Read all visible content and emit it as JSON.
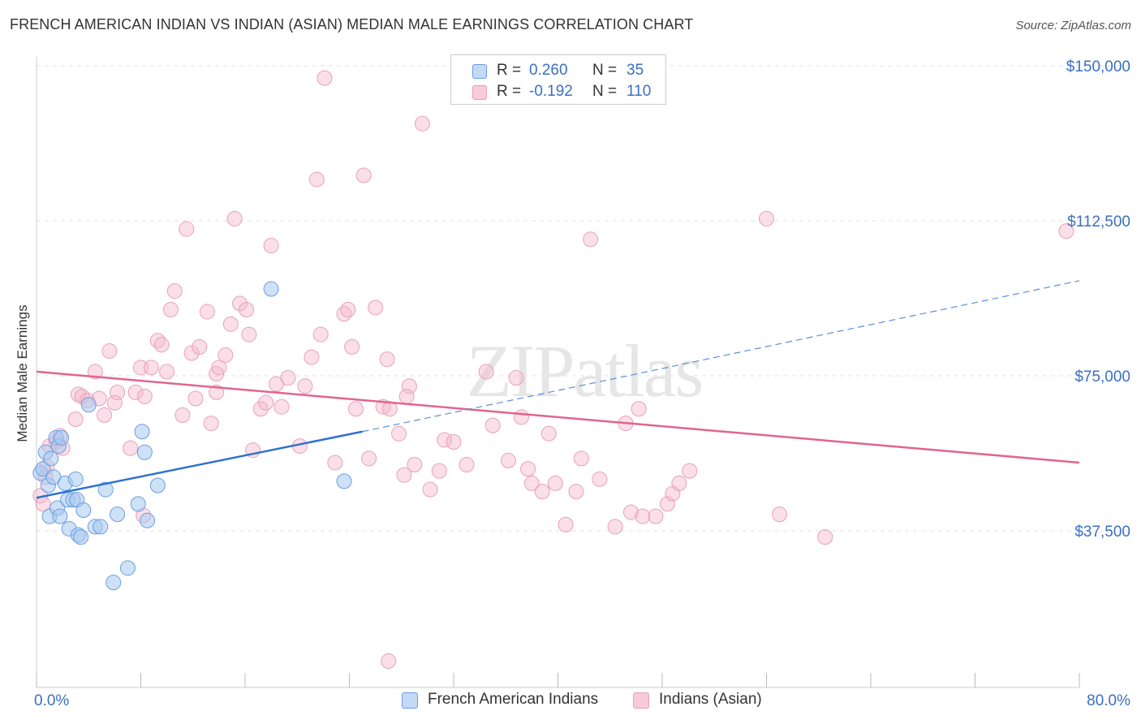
{
  "title": "FRENCH AMERICAN INDIAN VS INDIAN (ASIAN) MEDIAN MALE EARNINGS CORRELATION CHART",
  "source": "Source: ZipAtlas.com",
  "watermark": "ZIPatlas",
  "legend": {
    "rows": [
      {
        "r_label": "R =",
        "r_value": "0.260",
        "n_label": "N =",
        "n_value": "35",
        "color": "#a8c8f0"
      },
      {
        "r_label": "R =",
        "r_value": "-0.192",
        "n_label": "N =",
        "n_value": "110",
        "color": "#f5b8cc"
      }
    ]
  },
  "bottom_legend": [
    {
      "label": "French American Indians",
      "color": "#a8c8f0"
    },
    {
      "label": "Indians (Asian)",
      "color": "#f5b8cc"
    }
  ],
  "chart_data": {
    "type": "scatter",
    "title": "FRENCH AMERICAN INDIAN VS INDIAN (ASIAN) MEDIAN MALE EARNINGS CORRELATION CHART",
    "xlabel": "",
    "ylabel": "Median Male Earnings",
    "xlim": [
      0,
      80
    ],
    "ylim": [
      0,
      160000
    ],
    "x_tick_labels": [
      "0.0%",
      "80.0%"
    ],
    "y_ticks": [
      37500,
      75000,
      112500,
      150000
    ],
    "y_tick_labels": [
      "$37,500",
      "$75,000",
      "$112,500",
      "$150,000"
    ],
    "grid": true,
    "legend_position": "top-center",
    "series": [
      {
        "name": "French American Indians",
        "color": "#a8c8f0",
        "stroke": "#6a9ee0",
        "points": [
          [
            0.3,
            51500
          ],
          [
            0.5,
            52500
          ],
          [
            0.7,
            56500
          ],
          [
            0.9,
            48500
          ],
          [
            1.0,
            41000
          ],
          [
            1.1,
            55000
          ],
          [
            1.3,
            50500
          ],
          [
            1.5,
            60000
          ],
          [
            1.6,
            43000
          ],
          [
            1.7,
            58000
          ],
          [
            1.8,
            41000
          ],
          [
            1.9,
            60000
          ],
          [
            2.2,
            49000
          ],
          [
            2.4,
            45000
          ],
          [
            2.5,
            38000
          ],
          [
            2.8,
            45000
          ],
          [
            3.0,
            50000
          ],
          [
            3.1,
            45000
          ],
          [
            3.2,
            36500
          ],
          [
            3.4,
            36000
          ],
          [
            3.6,
            42500
          ],
          [
            4.0,
            68000
          ],
          [
            4.5,
            38500
          ],
          [
            4.9,
            38500
          ],
          [
            5.3,
            47500
          ],
          [
            5.9,
            25000
          ],
          [
            6.2,
            41500
          ],
          [
            7.0,
            28500
          ],
          [
            7.8,
            44000
          ],
          [
            8.1,
            61500
          ],
          [
            8.3,
            56500
          ],
          [
            8.5,
            40000
          ],
          [
            9.3,
            48500
          ],
          [
            18.0,
            96000
          ],
          [
            23.6,
            49500
          ]
        ],
        "trend": {
          "x": [
            0,
            25
          ],
          "y": [
            45500,
            61500
          ],
          "dashed_extension": {
            "x": [
              25,
              80
            ],
            "y": [
              61500,
              98000
            ]
          }
        }
      },
      {
        "name": "Indians (Asian)",
        "color": "#f5b8cc",
        "stroke": "#e8a0b8",
        "points": [
          [
            0.3,
            46000
          ],
          [
            0.5,
            44000
          ],
          [
            0.7,
            50500
          ],
          [
            0.8,
            53000
          ],
          [
            1.0,
            58000
          ],
          [
            1.5,
            59000
          ],
          [
            1.8,
            60500
          ],
          [
            2.0,
            57500
          ],
          [
            3.0,
            64500
          ],
          [
            3.2,
            70500
          ],
          [
            3.5,
            70000
          ],
          [
            3.9,
            69000
          ],
          [
            4.5,
            76000
          ],
          [
            4.8,
            69500
          ],
          [
            5.2,
            65500
          ],
          [
            5.6,
            81000
          ],
          [
            6.0,
            68500
          ],
          [
            6.2,
            71000
          ],
          [
            7.2,
            57500
          ],
          [
            7.6,
            71000
          ],
          [
            8.0,
            77000
          ],
          [
            8.3,
            70000
          ],
          [
            8.8,
            77000
          ],
          [
            9.3,
            83500
          ],
          [
            9.6,
            82500
          ],
          [
            10.0,
            76000
          ],
          [
            10.3,
            91000
          ],
          [
            10.6,
            95500
          ],
          [
            11.2,
            65500
          ],
          [
            11.5,
            110500
          ],
          [
            11.9,
            80500
          ],
          [
            12.2,
            69500
          ],
          [
            12.5,
            82000
          ],
          [
            13.1,
            90500
          ],
          [
            13.4,
            63500
          ],
          [
            13.8,
            75500
          ],
          [
            14.0,
            77000
          ],
          [
            14.5,
            80000
          ],
          [
            14.9,
            87500
          ],
          [
            15.2,
            113000
          ],
          [
            15.6,
            92500
          ],
          [
            16.1,
            91000
          ],
          [
            16.3,
            85000
          ],
          [
            16.6,
            57000
          ],
          [
            17.2,
            67000
          ],
          [
            17.6,
            68500
          ],
          [
            18.0,
            106500
          ],
          [
            18.4,
            73000
          ],
          [
            18.8,
            67500
          ],
          [
            19.3,
            74500
          ],
          [
            20.2,
            58000
          ],
          [
            20.6,
            72500
          ],
          [
            21.1,
            79500
          ],
          [
            21.5,
            122500
          ],
          [
            21.8,
            85000
          ],
          [
            22.1,
            147000
          ],
          [
            22.9,
            54000
          ],
          [
            23.6,
            90000
          ],
          [
            23.9,
            91000
          ],
          [
            24.2,
            82000
          ],
          [
            24.5,
            67000
          ],
          [
            25.1,
            123500
          ],
          [
            25.5,
            55000
          ],
          [
            26.0,
            91500
          ],
          [
            26.6,
            67500
          ],
          [
            26.9,
            79000
          ],
          [
            27.1,
            67000
          ],
          [
            27.8,
            61000
          ],
          [
            28.2,
            51000
          ],
          [
            28.6,
            72500
          ],
          [
            29.0,
            53500
          ],
          [
            29.6,
            136000
          ],
          [
            30.2,
            47500
          ],
          [
            30.9,
            52000
          ],
          [
            31.3,
            59500
          ],
          [
            32.0,
            59000
          ],
          [
            33.0,
            53500
          ],
          [
            34.5,
            76000
          ],
          [
            35.0,
            63000
          ],
          [
            36.2,
            54500
          ],
          [
            36.8,
            74500
          ],
          [
            37.2,
            65000
          ],
          [
            37.7,
            52500
          ],
          [
            38.0,
            49000
          ],
          [
            38.8,
            47000
          ],
          [
            39.3,
            61000
          ],
          [
            39.8,
            49000
          ],
          [
            40.6,
            39000
          ],
          [
            41.4,
            47000
          ],
          [
            41.8,
            55000
          ],
          [
            42.5,
            108000
          ],
          [
            43.2,
            50000
          ],
          [
            44.4,
            38500
          ],
          [
            45.2,
            63500
          ],
          [
            45.6,
            42000
          ],
          [
            46.2,
            67000
          ],
          [
            46.5,
            41000
          ],
          [
            47.5,
            41000
          ],
          [
            48.4,
            44000
          ],
          [
            48.8,
            46500
          ],
          [
            49.3,
            49000
          ],
          [
            50.1,
            52000
          ],
          [
            56.0,
            113000
          ],
          [
            57.0,
            41500
          ],
          [
            60.5,
            36000
          ],
          [
            28.4,
            70000
          ],
          [
            27.0,
            6000
          ],
          [
            8.2,
            41200
          ],
          [
            13.8,
            71000
          ],
          [
            79.0,
            110000
          ]
        ],
        "trend": {
          "x": [
            0,
            80
          ],
          "y": [
            76000,
            54000
          ]
        }
      }
    ]
  }
}
